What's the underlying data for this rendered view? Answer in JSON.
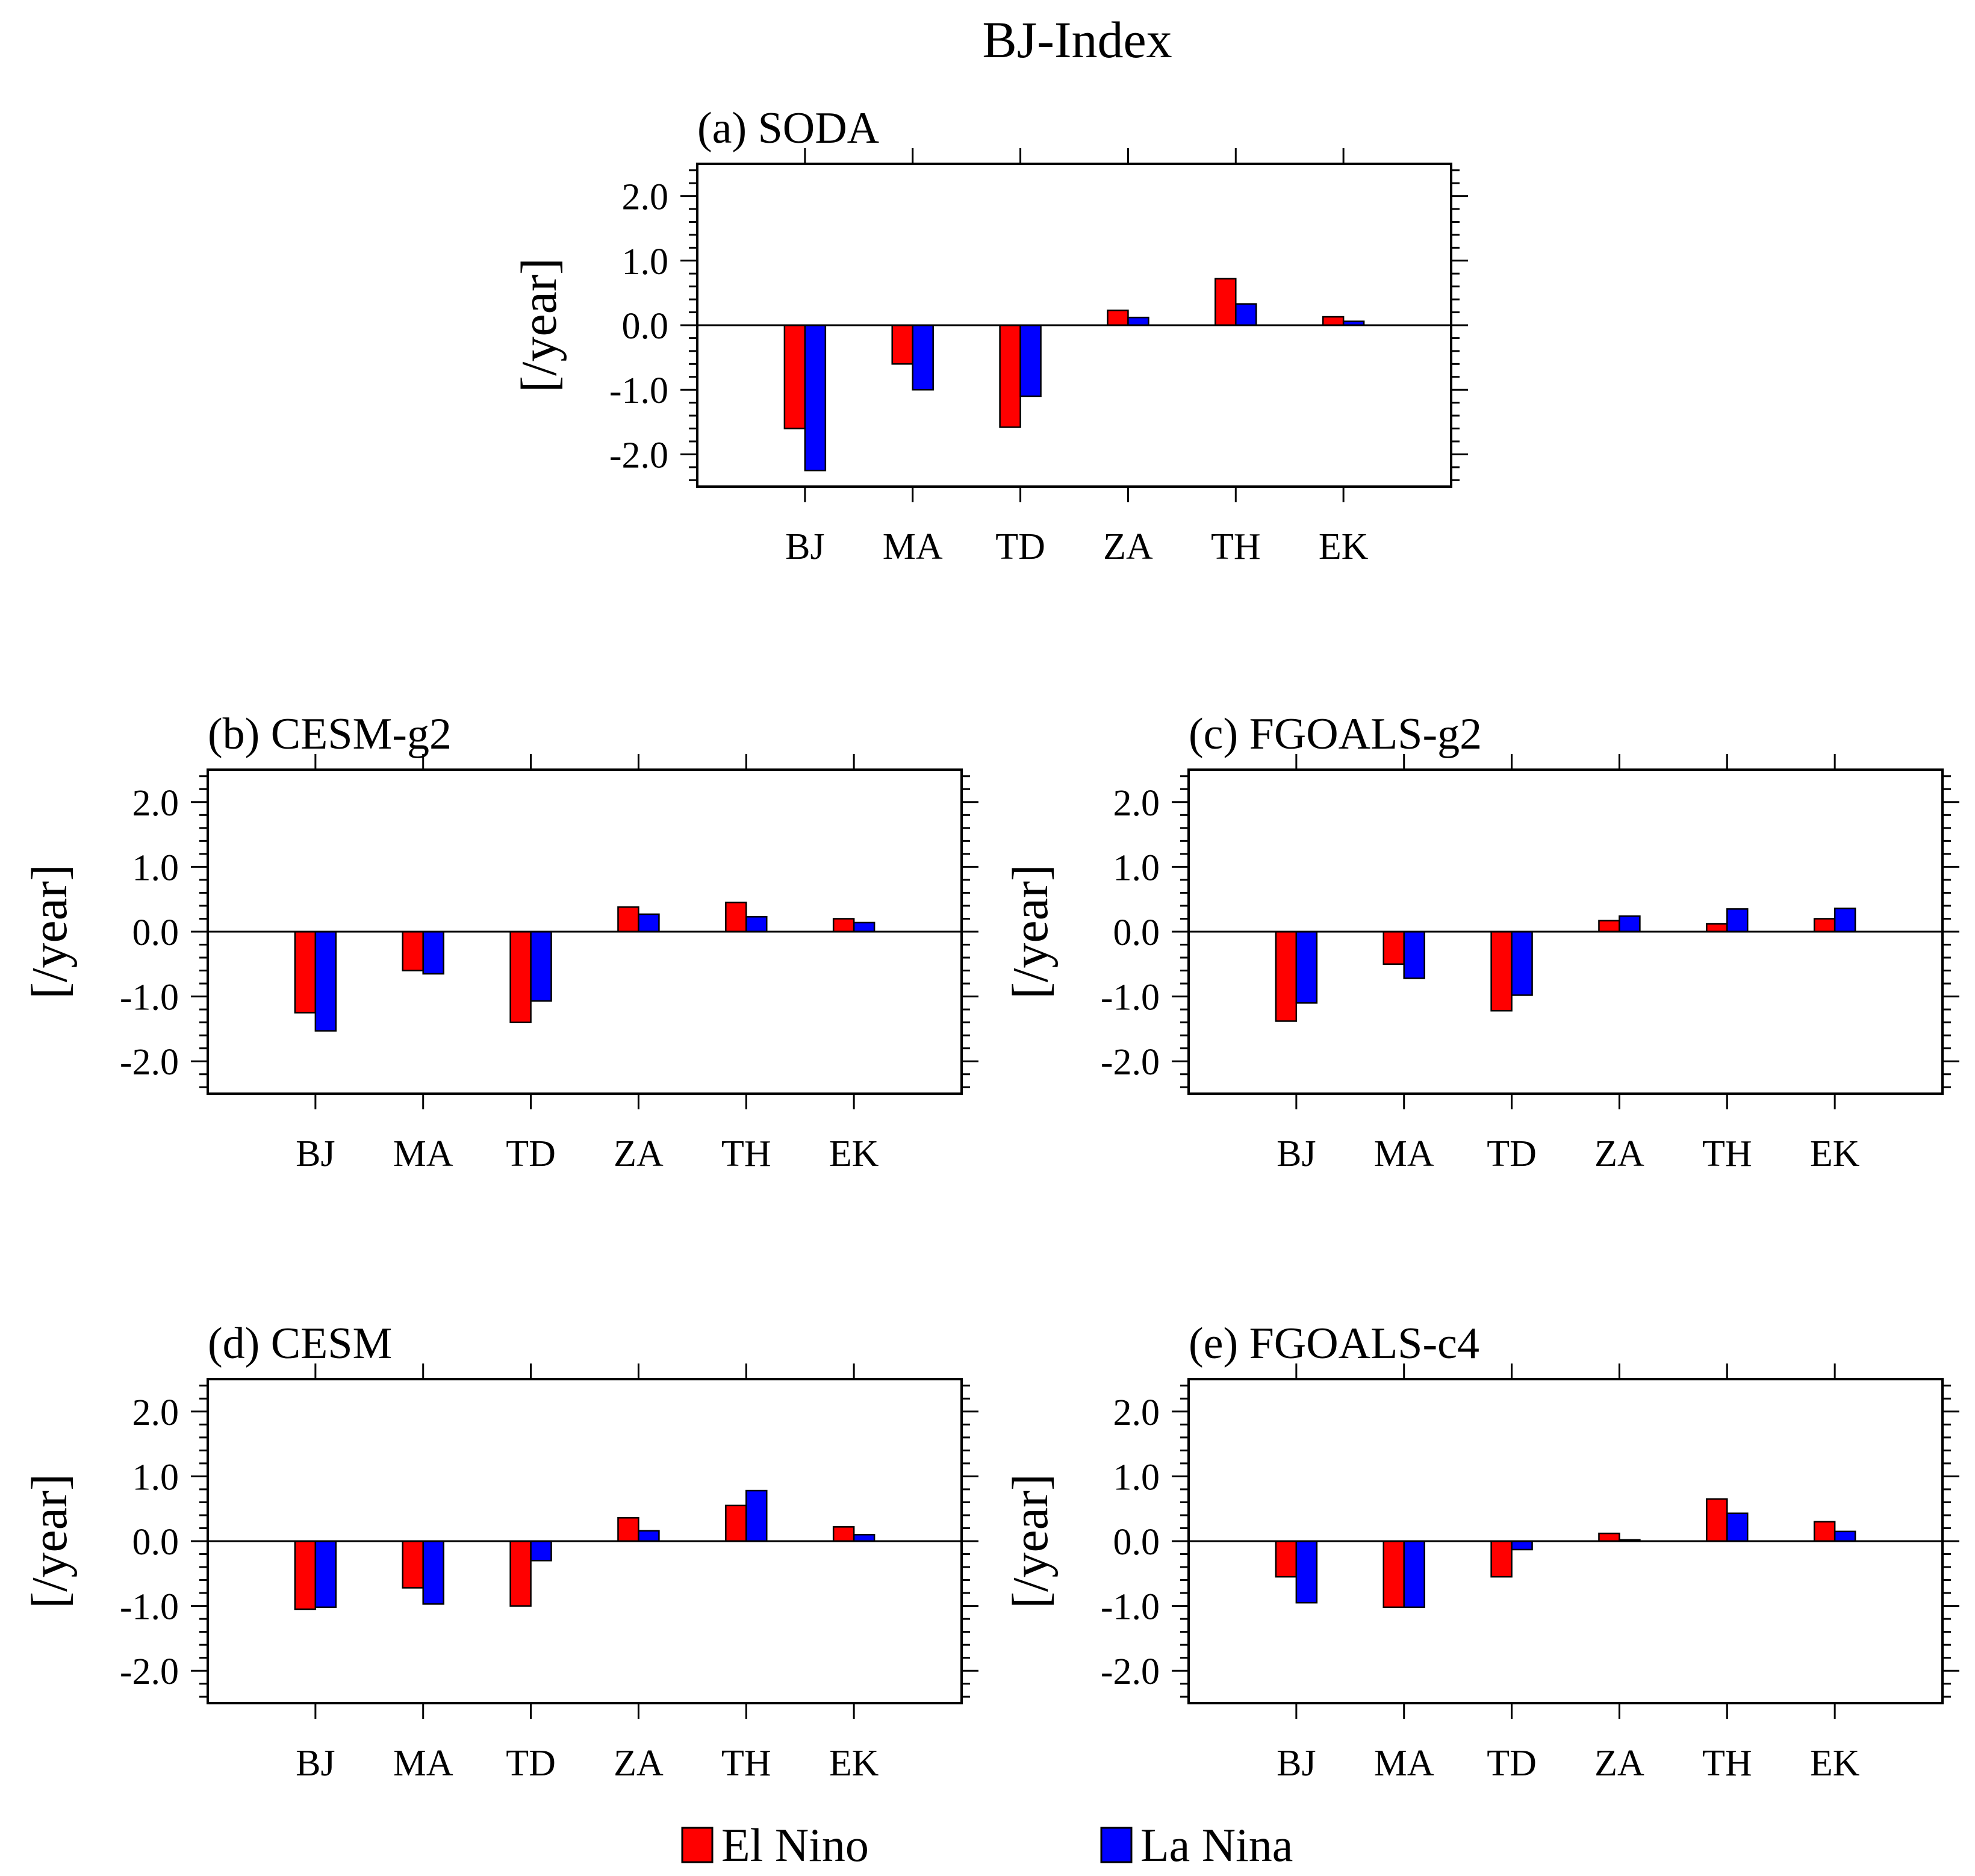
{
  "figure_title": "BJ-Index",
  "colors": {
    "el_nino": "#ff0000",
    "la_nina": "#0000ff",
    "frame": "#000000"
  },
  "legend": {
    "placement": "bottom-center",
    "items": [
      "El Nino",
      "La Nina"
    ]
  },
  "chart_data": [
    {
      "type": "bar",
      "title": "(a) SODA",
      "ylabel": "[/year]",
      "ylim": [
        -2.5,
        2.5
      ],
      "yticks": [
        "2.0",
        "1.0",
        "0.0",
        "-1.0",
        "-2.0"
      ],
      "categories": [
        "BJ",
        "MA",
        "TD",
        "ZA",
        "TH",
        "EK"
      ],
      "series": [
        {
          "name": "El Nino",
          "values": [
            -1.6,
            -0.6,
            -1.58,
            0.23,
            0.72,
            0.13
          ]
        },
        {
          "name": "La Nina",
          "values": [
            -2.25,
            -1.0,
            -1.1,
            0.12,
            0.33,
            0.06
          ]
        }
      ]
    },
    {
      "type": "bar",
      "title": "(b) CESM-g2",
      "ylabel": "[/year]",
      "ylim": [
        -2.5,
        2.5
      ],
      "yticks": [
        "2.0",
        "1.0",
        "0.0",
        "-1.0",
        "-2.0"
      ],
      "categories": [
        "BJ",
        "MA",
        "TD",
        "ZA",
        "TH",
        "EK"
      ],
      "series": [
        {
          "name": "El Nino",
          "values": [
            -1.25,
            -0.6,
            -1.4,
            0.38,
            0.45,
            0.2
          ]
        },
        {
          "name": "La Nina",
          "values": [
            -1.53,
            -0.65,
            -1.07,
            0.27,
            0.23,
            0.14
          ]
        }
      ]
    },
    {
      "type": "bar",
      "title": "(c) FGOALS-g2",
      "ylabel": "[/year]",
      "ylim": [
        -2.5,
        2.5
      ],
      "yticks": [
        "2.0",
        "1.0",
        "0.0",
        "-1.0",
        "-2.0"
      ],
      "categories": [
        "BJ",
        "MA",
        "TD",
        "ZA",
        "TH",
        "EK"
      ],
      "series": [
        {
          "name": "El Nino",
          "values": [
            -1.38,
            -0.5,
            -1.22,
            0.17,
            0.12,
            0.2
          ]
        },
        {
          "name": "La Nina",
          "values": [
            -1.1,
            -0.72,
            -0.98,
            0.24,
            0.35,
            0.36
          ]
        }
      ]
    },
    {
      "type": "bar",
      "title": "(d) CESM",
      "ylabel": "[/year]",
      "ylim": [
        -2.5,
        2.5
      ],
      "yticks": [
        "2.0",
        "1.0",
        "0.0",
        "-1.0",
        "-2.0"
      ],
      "categories": [
        "BJ",
        "MA",
        "TD",
        "ZA",
        "TH",
        "EK"
      ],
      "series": [
        {
          "name": "El Nino",
          "values": [
            -1.05,
            -0.72,
            -1.0,
            0.36,
            0.55,
            0.22
          ]
        },
        {
          "name": "La Nina",
          "values": [
            -1.02,
            -0.97,
            -0.3,
            0.16,
            0.78,
            0.1
          ]
        }
      ]
    },
    {
      "type": "bar",
      "title": "(e) FGOALS-c4",
      "ylabel": "[/year]",
      "ylim": [
        -2.5,
        2.5
      ],
      "yticks": [
        "2.0",
        "1.0",
        "0.0",
        "-1.0",
        "-2.0"
      ],
      "categories": [
        "BJ",
        "MA",
        "TD",
        "ZA",
        "TH",
        "EK"
      ],
      "series": [
        {
          "name": "El Nino",
          "values": [
            -0.55,
            -1.02,
            -0.55,
            0.12,
            0.65,
            0.3
          ]
        },
        {
          "name": "La Nina",
          "values": [
            -0.95,
            -1.02,
            -0.13,
            0.02,
            0.43,
            0.15
          ]
        }
      ]
    }
  ]
}
